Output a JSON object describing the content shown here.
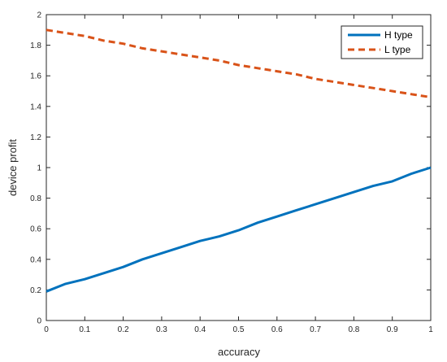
{
  "chart_data": {
    "type": "line",
    "title": "",
    "xlabel": "accuracy",
    "ylabel": "device profit",
    "xlim": [
      0,
      1
    ],
    "ylim": [
      0,
      2
    ],
    "xticks": [
      "0",
      "0.1",
      "0.2",
      "0.3",
      "0.4",
      "0.5",
      "0.6",
      "0.7",
      "0.8",
      "0.9",
      "1"
    ],
    "yticks": [
      "0",
      "0.2",
      "0.4",
      "0.6",
      "0.8",
      "1",
      "1.2",
      "1.4",
      "1.6",
      "1.8",
      "2"
    ],
    "grid": false,
    "legend_position": "top-right",
    "x": [
      0,
      0.05,
      0.1,
      0.15,
      0.2,
      0.25,
      0.3,
      0.35,
      0.4,
      0.45,
      0.5,
      0.55,
      0.6,
      0.65,
      0.7,
      0.75,
      0.8,
      0.85,
      0.9,
      0.95,
      1.0
    ],
    "series": [
      {
        "name": "H type",
        "color": "#0072bd",
        "style": "solid",
        "values": [
          0.19,
          0.24,
          0.27,
          0.31,
          0.35,
          0.4,
          0.44,
          0.48,
          0.52,
          0.55,
          0.59,
          0.64,
          0.68,
          0.72,
          0.76,
          0.8,
          0.84,
          0.88,
          0.91,
          0.96,
          1.0
        ]
      },
      {
        "name": "L type",
        "color": "#d95319",
        "style": "dashed",
        "values": [
          1.9,
          1.88,
          1.86,
          1.83,
          1.81,
          1.78,
          1.76,
          1.74,
          1.72,
          1.7,
          1.67,
          1.65,
          1.63,
          1.61,
          1.58,
          1.56,
          1.54,
          1.52,
          1.5,
          1.48,
          1.46
        ]
      }
    ]
  }
}
